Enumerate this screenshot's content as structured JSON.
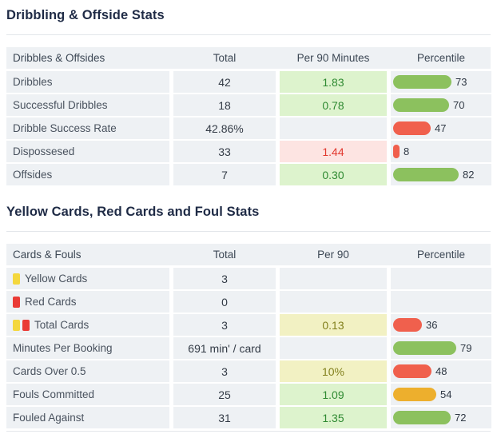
{
  "colors": {
    "title_text": "#1f2b46",
    "header_bg": "#eef1f4",
    "cell_bg": "#eef1f4",
    "bar_green": "#8cc15e",
    "bar_red": "#f0604d",
    "bar_orange": "#edaf2d",
    "good_bg": "#ddf3cd",
    "good_text": "#2f8a32",
    "bad_bg": "#fde4e2",
    "bad_text": "#e2382e",
    "neutral_bg": "#f2f1c3",
    "neutral_text": "#817f1c",
    "yellow_card": "#f4d73d",
    "red_card": "#ea3b36"
  },
  "sections": [
    {
      "title": "Dribbling & Offside Stats",
      "headers": [
        "Dribbles & Offsides",
        "Total",
        "Per 90 Minutes",
        "Percentile"
      ],
      "rows": [
        {
          "label": "Dribbles",
          "icons": [],
          "total": "42",
          "per90": "1.83",
          "per90_tone": "good",
          "percentile": 73,
          "bar_color": "green"
        },
        {
          "label": "Successful Dribbles",
          "icons": [],
          "total": "18",
          "per90": "0.78",
          "per90_tone": "good",
          "percentile": 70,
          "bar_color": "green"
        },
        {
          "label": "Dribble Success Rate",
          "icons": [],
          "total": "42.86%",
          "per90": "",
          "per90_tone": "",
          "percentile": 47,
          "bar_color": "red"
        },
        {
          "label": "Dispossesed",
          "icons": [],
          "total": "33",
          "per90": "1.44",
          "per90_tone": "bad",
          "percentile": 8,
          "bar_color": "red"
        },
        {
          "label": "Offsides",
          "icons": [],
          "total": "7",
          "per90": "0.30",
          "per90_tone": "good",
          "percentile": 82,
          "bar_color": "green"
        }
      ]
    },
    {
      "title": "Yellow Cards, Red Cards and Foul Stats",
      "headers": [
        "Cards & Fouls",
        "Total",
        "Per 90",
        "Percentile"
      ],
      "rows": [
        {
          "label": "Yellow Cards",
          "icons": [
            "yellow-card"
          ],
          "total": "3",
          "per90": "",
          "per90_tone": "",
          "percentile": null,
          "bar_color": ""
        },
        {
          "label": "Red Cards",
          "icons": [
            "red-card"
          ],
          "total": "0",
          "per90": "",
          "per90_tone": "",
          "percentile": null,
          "bar_color": ""
        },
        {
          "label": "Total Cards",
          "icons": [
            "yellow-card",
            "red-card"
          ],
          "total": "3",
          "per90": "0.13",
          "per90_tone": "neutral",
          "percentile": 36,
          "bar_color": "red"
        },
        {
          "label": "Minutes Per Booking",
          "icons": [],
          "total": "691 min' / card",
          "per90": "",
          "per90_tone": "",
          "percentile": 79,
          "bar_color": "green"
        },
        {
          "label": "Cards Over 0.5",
          "icons": [],
          "total": "3",
          "per90": "10%",
          "per90_tone": "neutral",
          "percentile": 48,
          "bar_color": "red"
        },
        {
          "label": "Fouls Committed",
          "icons": [],
          "total": "25",
          "per90": "1.09",
          "per90_tone": "good",
          "percentile": 54,
          "bar_color": "orange"
        },
        {
          "label": "Fouled Against",
          "icons": [],
          "total": "31",
          "per90": "1.35",
          "per90_tone": "good",
          "percentile": 72,
          "bar_color": "green"
        }
      ]
    }
  ]
}
